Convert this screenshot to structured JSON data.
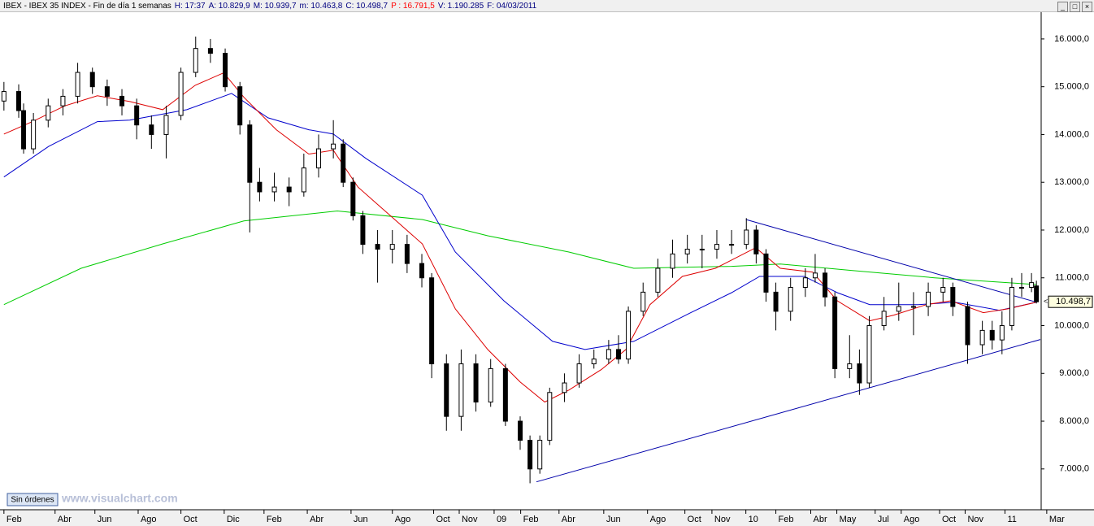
{
  "chart_data": {
    "type": "candlestick",
    "header": [
      {
        "text": "IBEX - IBEX 35 INDEX - Fin de día 1 semanas",
        "color": "#000000"
      },
      {
        "text": "H: 17:37",
        "color": "#000080"
      },
      {
        "text": "A: 10.829,9",
        "color": "#000080"
      },
      {
        "text": "M: 10.939,7",
        "color": "#000080"
      },
      {
        "text": "m: 10.463,8",
        "color": "#000080"
      },
      {
        "text": "C: 10.498,7",
        "color": "#000080"
      },
      {
        "text": "P : 16.791,5",
        "color": "#ff0000"
      },
      {
        "text": "V: 1.190.285",
        "color": "#000080"
      },
      {
        "text": "F: 04/03/2011",
        "color": "#000080"
      }
    ],
    "button": "Sin órdenes",
    "watermark": "www.visualchart.com",
    "xlim": [
      -0.8,
      210.8
    ],
    "ylim": [
      6180,
      16560
    ],
    "xticks": [
      {
        "value": 0,
        "label": "Feb"
      },
      {
        "value": 10.4,
        "label": "Abr"
      },
      {
        "value": 18.5,
        "label": "Jun"
      },
      {
        "value": 27.3,
        "label": "Ago"
      },
      {
        "value": 36,
        "label": "Oct"
      },
      {
        "value": 44.8,
        "label": "Dic"
      },
      {
        "value": 52.9,
        "label": "Feb"
      },
      {
        "value": 61.7,
        "label": "Abr"
      },
      {
        "value": 70.6,
        "label": "Jun"
      },
      {
        "value": 79,
        "label": "Ago"
      },
      {
        "value": 87.4,
        "label": "Oct"
      },
      {
        "value": 92.6,
        "label": "Nov"
      },
      {
        "value": 99.7,
        "label": "09"
      },
      {
        "value": 105.1,
        "label": "Feb"
      },
      {
        "value": 112.9,
        "label": "Abr"
      },
      {
        "value": 122,
        "label": "Jun"
      },
      {
        "value": 130.9,
        "label": "Ago"
      },
      {
        "value": 138.5,
        "label": "Oct"
      },
      {
        "value": 144,
        "label": "Nov"
      },
      {
        "value": 150.9,
        "label": "10"
      },
      {
        "value": 157,
        "label": "Feb"
      },
      {
        "value": 164.1,
        "label": "Abr"
      },
      {
        "value": 169.4,
        "label": "May"
      },
      {
        "value": 177.2,
        "label": "Jul"
      },
      {
        "value": 182.5,
        "label": "Ago"
      },
      {
        "value": 190.3,
        "label": "Oct"
      },
      {
        "value": 195.5,
        "label": "Nov"
      },
      {
        "value": 203.6,
        "label": "11"
      },
      {
        "value": 212.1,
        "label": "Mar"
      }
    ],
    "yticks": [
      {
        "value": 7000,
        "label": "7.000,0"
      },
      {
        "value": 8000,
        "label": "8.000,0"
      },
      {
        "value": 9000,
        "label": "9.000,0"
      },
      {
        "value": 10000,
        "label": "10.000,0"
      },
      {
        "value": 11000,
        "label": "11.000,0"
      },
      {
        "value": 12000,
        "label": "12.000,0"
      },
      {
        "value": 13000,
        "label": "13.000,0"
      },
      {
        "value": 14000,
        "label": "14.000,0"
      },
      {
        "value": 15000,
        "label": "15.000,0"
      },
      {
        "value": 16000,
        "label": "16.000,0"
      }
    ],
    "last_price": {
      "value": 10498.7,
      "label": "10.498,7"
    },
    "x": [
      0,
      3,
      4,
      6,
      9,
      12,
      15,
      18,
      21,
      24,
      27,
      30,
      33,
      36,
      39,
      42,
      45,
      48,
      50,
      52,
      55,
      58,
      61,
      64,
      67,
      69,
      71,
      73,
      76,
      79,
      82,
      85,
      87,
      90,
      93,
      96,
      99,
      102,
      105,
      107,
      109,
      111,
      114,
      117,
      120,
      123,
      125,
      127,
      130,
      133,
      136,
      139,
      142,
      145,
      148,
      151,
      153,
      155,
      157,
      160,
      163,
      165,
      167,
      169,
      172,
      174,
      176,
      179,
      182,
      185,
      188,
      191,
      193,
      196,
      199,
      201,
      203,
      205,
      207,
      209,
      210
    ],
    "open": [
      14700,
      14900,
      14500,
      13700,
      14300,
      14600,
      14800,
      15300,
      15000,
      14800,
      14600,
      14200,
      14000,
      14400,
      15300,
      15800,
      15700,
      15000,
      14200,
      13000,
      12800,
      12900,
      12800,
      13300,
      13700,
      13800,
      13000,
      12300,
      11700,
      11600,
      11700,
      11300,
      11000,
      9200,
      8100,
      9200,
      8400,
      9100,
      8000,
      7600,
      7000,
      7600,
      8600,
      8800,
      9200,
      9300,
      9500,
      9300,
      10300,
      10700,
      11200,
      11500,
      11600,
      11600,
      11700,
      11700,
      12000,
      11500,
      10700,
      10300,
      10800,
      11000,
      11100,
      10600,
      9100,
      9200,
      8800,
      10000,
      10300,
      10400,
      10400,
      10700,
      10800,
      10400,
      9600,
      9900,
      9700,
      10000,
      10800,
      10800,
      10829.9
    ],
    "high": [
      15100,
      15050,
      14650,
      14450,
      14750,
      14950,
      15500,
      15400,
      15150,
      14950,
      14750,
      14400,
      14600,
      15400,
      16050,
      16000,
      15800,
      15100,
      14300,
      13300,
      13200,
      13100,
      13600,
      14000,
      14300,
      13900,
      13100,
      12400,
      12000,
      12000,
      11900,
      11500,
      11100,
      9400,
      9500,
      9400,
      9300,
      9200,
      8100,
      7700,
      7700,
      8700,
      9000,
      9400,
      9500,
      9700,
      9800,
      10400,
      10900,
      11400,
      11800,
      11900,
      11900,
      12000,
      12000,
      12250,
      12100,
      11600,
      10900,
      11000,
      11200,
      11500,
      11200,
      10700,
      9800,
      9500,
      10200,
      10600,
      10900,
      10700,
      10900,
      11000,
      10900,
      10500,
      10100,
      10100,
      10300,
      11000,
      11100,
      11100,
      10939.7
    ],
    "low": [
      14500,
      14350,
      13600,
      13600,
      14150,
      14400,
      14650,
      14850,
      14600,
      14400,
      13900,
      13700,
      13500,
      14300,
      15200,
      15500,
      14900,
      14000,
      11950,
      12600,
      12600,
      12500,
      12700,
      13100,
      13500,
      12900,
      12200,
      11500,
      10900,
      11300,
      11100,
      10800,
      8900,
      7800,
      7800,
      8200,
      8300,
      7900,
      7400,
      6700,
      6900,
      7500,
      8400,
      8700,
      9100,
      9200,
      9200,
      9200,
      10200,
      10600,
      11000,
      11300,
      11200,
      11400,
      11500,
      11600,
      11300,
      10500,
      9900,
      10100,
      10600,
      10900,
      10400,
      8900,
      8900,
      8550,
      8700,
      9900,
      10100,
      9800,
      10200,
      10500,
      10200,
      9200,
      9400,
      9500,
      9400,
      9900,
      10600,
      10700,
      10463.8
    ],
    "close": [
      14900,
      14500,
      13700,
      14300,
      14600,
      14800,
      15300,
      15000,
      14800,
      14600,
      14200,
      14000,
      14400,
      15300,
      15800,
      15700,
      15000,
      14200,
      13000,
      12800,
      12900,
      12800,
      13300,
      13700,
      13800,
      13000,
      12300,
      11700,
      11600,
      11700,
      11300,
      11000,
      9200,
      8100,
      9200,
      8400,
      9100,
      8000,
      7600,
      7000,
      7600,
      8600,
      8800,
      9200,
      9300,
      9500,
      9300,
      10300,
      10700,
      11200,
      11500,
      11600,
      11600,
      11700,
      11700,
      12000,
      11500,
      10700,
      10300,
      10800,
      11000,
      11100,
      10600,
      9100,
      9200,
      8800,
      10000,
      10300,
      10400,
      10400,
      10700,
      10800,
      10400,
      9600,
      9900,
      9700,
      10000,
      10800,
      10800,
      10900,
      10498.7
    ],
    "lines": [
      {
        "color": "#00cc00",
        "x": [
          0,
          15.7,
          32.3,
          48.8,
          67.8,
          85.1,
          98.4,
          114.9,
          128.1,
          148,
          157.9,
          172.8,
          189.3,
          210
        ],
        "values": [
          10440,
          11200,
          11710,
          12190,
          12400,
          12220,
          11880,
          11540,
          11200,
          11240,
          11290,
          11150,
          11000,
          10860
        ]
      },
      {
        "color": "#0000cc",
        "x": [
          0,
          9.1,
          19,
          25.6,
          37.2,
          46.3,
          53.7,
          62,
          67,
          73.6,
          85.1,
          91.8,
          101.7,
          111.6,
          118.2,
          128.1,
          139.7,
          148,
          153.7,
          162.8,
          169.5,
          176.1,
          186,
          193.4,
          202.5,
          210
        ],
        "values": [
          13110,
          13750,
          14270,
          14300,
          14520,
          14860,
          14350,
          14100,
          14010,
          13500,
          12730,
          11540,
          10520,
          9670,
          9500,
          9670,
          10270,
          10690,
          11030,
          11030,
          10690,
          10440,
          10440,
          10490,
          10320,
          10490
        ]
      },
      {
        "color": "#dd0000",
        "x": [
          0,
          5.8,
          12.4,
          19,
          25.6,
          32.3,
          38.9,
          44.7,
          48.8,
          55.4,
          62,
          67,
          72,
          78.5,
          85.1,
          91.8,
          98.4,
          105,
          110,
          114.9,
          121.5,
          126.5,
          131.4,
          138,
          144.7,
          152.9,
          157.9,
          164.5,
          169.5,
          176.1,
          181,
          187.6,
          192.6,
          199.2,
          204.2,
          210
        ],
        "values": [
          14010,
          14270,
          14600,
          14810,
          14690,
          14520,
          15030,
          15290,
          14780,
          14100,
          13590,
          13670,
          12900,
          12310,
          11710,
          10350,
          9500,
          8820,
          8400,
          8650,
          9080,
          9500,
          10440,
          11030,
          11200,
          11630,
          11200,
          11120,
          10520,
          10100,
          10220,
          10440,
          10520,
          10270,
          10350,
          10490
        ]
      },
      {
        "color": "#0000aa",
        "x": [
          150.9,
          210
        ],
        "values": [
          12220,
          10490
        ]
      },
      {
        "color": "#0000aa",
        "x": [
          108.3,
          210.8
        ],
        "values": [
          6730,
          9710
        ]
      }
    ]
  }
}
